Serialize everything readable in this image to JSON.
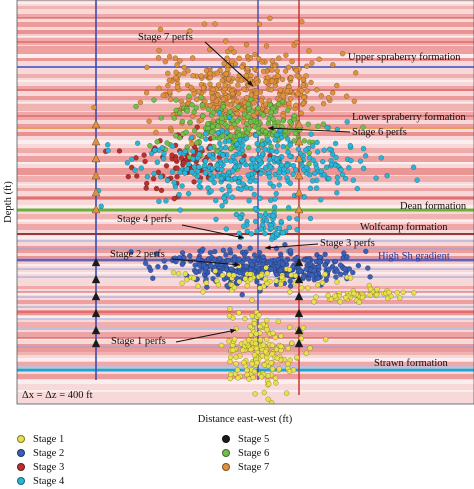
{
  "chart_data": {
    "type": "scatter",
    "xlabel": "Distance east-west (ft)",
    "ylabel": "Depth (ft)",
    "scale_note": "Δx = Δz = 400 ft",
    "formations": [
      {
        "label": "Upper spraberry formation"
      },
      {
        "label": "Lower spraberry formation"
      },
      {
        "label": "Dean formation"
      },
      {
        "label": "Wolfcamp formation"
      },
      {
        "label": "High Sh gradient"
      },
      {
        "label": "Strawn formation"
      }
    ],
    "perf_labels": [
      {
        "label": "Stage 7 perfs"
      },
      {
        "label": "Stage 6 perfs"
      },
      {
        "label": "Stage 4 perfs"
      },
      {
        "label": "Stage 3 perfs"
      },
      {
        "label": "Stage 2 perfs"
      },
      {
        "label": "Stage 1 perfs"
      }
    ],
    "series": [
      {
        "name": "Stage 1",
        "color": "#e8e04a"
      },
      {
        "name": "Stage 2",
        "color": "#3a5fb8"
      },
      {
        "name": "Stage 3",
        "color": "#b8312f"
      },
      {
        "name": "Stage 4",
        "color": "#2ab5d6"
      },
      {
        "name": "Stage 5",
        "color": "#1a1a1a"
      },
      {
        "name": "Stage 6",
        "color": "#6fc04a"
      },
      {
        "name": "Stage 7",
        "color": "#e0913f"
      }
    ],
    "colors": {
      "band_red": "#e46a6a",
      "band_light": "#f4b7b7",
      "line_blue": "#3b4cc0",
      "line_green": "#6fae3a",
      "line_cyan": "#1aa7d6",
      "well_red": "#c0302c",
      "well_blue": "#3a4bb5"
    },
    "grid": false
  }
}
